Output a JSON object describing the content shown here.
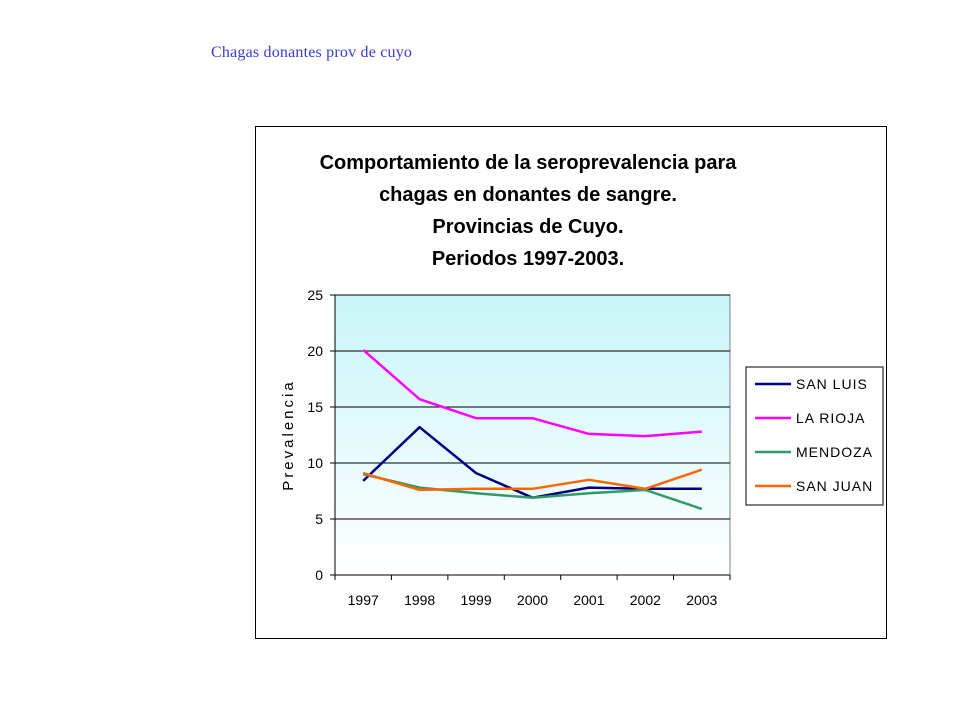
{
  "page": {
    "caption": "Chagas donantes prov de cuyo"
  },
  "chart_data": {
    "type": "line",
    "title_lines": [
      "Comportamiento de la seroprevalencia para",
      "chagas en donantes de sangre.",
      "Provincias de Cuyo.",
      "Periodos 1997-2003."
    ],
    "xlabel": "",
    "ylabel": "Prevalencia",
    "categories": [
      "1997",
      "1998",
      "1999",
      "2000",
      "2001",
      "2002",
      "2003"
    ],
    "ylim": [
      0,
      25
    ],
    "yticks": [
      0,
      5,
      10,
      15,
      20,
      25
    ],
    "grid": "horizontal",
    "legend_position": "right",
    "plot_background": [
      "#c8f5f8",
      "#ffffff"
    ],
    "series": [
      {
        "name": "SAN LUIS",
        "color": "#000080",
        "values": [
          8.4,
          13.2,
          9.1,
          6.9,
          7.8,
          7.7,
          7.7
        ]
      },
      {
        "name": "LA RIOJA",
        "color": "#ff00ff",
        "values": [
          20.1,
          15.7,
          14.0,
          14.0,
          12.6,
          12.4,
          12.8
        ]
      },
      {
        "name": "MENDOZA",
        "color": "#339966",
        "values": [
          9.0,
          7.8,
          7.3,
          6.9,
          7.3,
          7.6,
          5.9
        ]
      },
      {
        "name": "SAN JUAN",
        "color": "#ff6600",
        "values": [
          9.1,
          7.6,
          7.7,
          7.7,
          8.5,
          7.7,
          9.4
        ]
      }
    ]
  }
}
